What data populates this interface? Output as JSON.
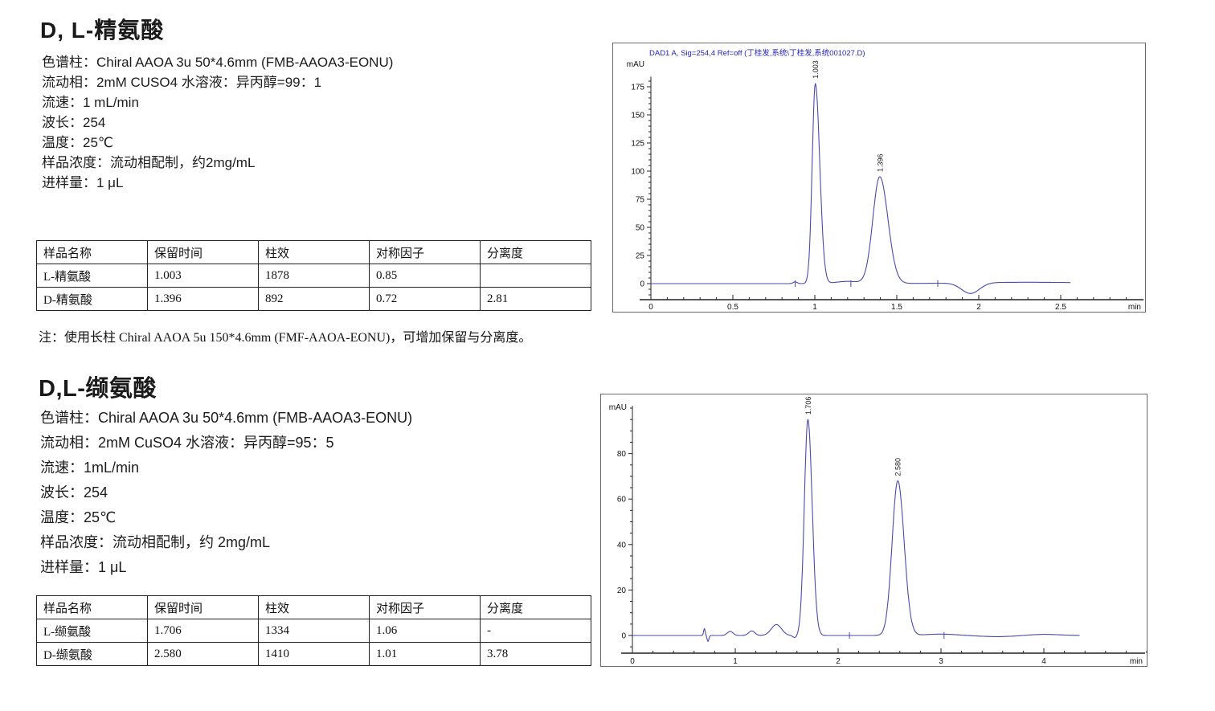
{
  "section1": {
    "title": "D, L-精氨酸",
    "specs": [
      "色谱柱：Chiral AAOA 3u 50*4.6mm (FMB-AAOA3-EONU)",
      "流动相：2mM CUSO4 水溶液：异丙醇=99：1",
      "流速：1 mL/min",
      "波长：254",
      "温度：25℃",
      "样品浓度：流动相配制，约2mg/mL",
      "进样量：1 μL"
    ],
    "table": {
      "headers": [
        "样品名称",
        "保留时间",
        "柱效",
        "对称因子",
        "分离度"
      ],
      "rows": [
        [
          "L-精氨酸",
          "1.003",
          "1878",
          "0.85",
          ""
        ],
        [
          "D-精氨酸",
          "1.396",
          "892",
          "0.72",
          "2.81"
        ]
      ]
    },
    "note": "注：使用长柱 Chiral AAOA 5u 150*4.6mm (FMF-AAOA-EONU)，可增加保留与分离度。"
  },
  "section2": {
    "title": "D,L-缬氨酸",
    "specs": [
      "色谱柱：Chiral AAOA 3u 50*4.6mm (FMB-AAOA3-EONU)",
      "流动相：2mM CuSO4 水溶液：异丙醇=95：5",
      "流速：1mL/min",
      "波长：254",
      "温度：25℃",
      "样品浓度：流动相配制，约 2mg/mL",
      "进样量：1 μL"
    ],
    "table": {
      "headers": [
        "样品名称",
        "保留时间",
        "柱效",
        "对称因子",
        "分离度"
      ],
      "rows": [
        [
          "L-缬氨酸",
          "1.706",
          "1334",
          "1.06",
          "-"
        ],
        [
          "D-缬氨酸",
          "2.580",
          "1410",
          "1.01",
          "3.78"
        ]
      ]
    }
  },
  "chart_data": [
    {
      "type": "line",
      "compound": "D,L-精氨酸",
      "title": "DAD1 A, Sig=254,4 Ref=off (丁桂发,系统\\丁桂发,系统001027.D)",
      "title_color": "#2323c4",
      "xlabel": "min",
      "ylabel": "mAU",
      "xlim": [
        0,
        3.05
      ],
      "ylim": [
        -18,
        198
      ],
      "x_major_ticks": [
        0,
        0.5,
        1,
        1.5,
        2,
        2.5
      ],
      "x_minor_step": 0.1,
      "x_tick_end": 2.9,
      "y_major_ticks": [
        0,
        25,
        50,
        75,
        100,
        125,
        150,
        175
      ],
      "y_minor_step": 5,
      "y_tick_min": -10,
      "y_axis_top": 184,
      "trace_color": "#4a4aae",
      "trace_end": 2.56,
      "peaks": [
        {
          "rt": 1.003,
          "height": 178,
          "sigma_left": 0.019,
          "sigma_right": 0.027,
          "label": "1.003"
        },
        {
          "rt": 1.396,
          "height": 95,
          "sigma_left": 0.042,
          "sigma_right": 0.05,
          "label": "1.396"
        }
      ],
      "baseline_features": [
        {
          "rt": 0.88,
          "height": 1.6,
          "sigma": 0.012
        },
        {
          "rt": 1.2,
          "height": 2.0,
          "sigma": 0.07
        },
        {
          "rt": 1.95,
          "height": -9.5,
          "sigma": 0.055
        },
        {
          "rt": 2.3,
          "height": 1.2,
          "sigma": 0.35
        }
      ],
      "integration_marks": [
        0.88,
        1.22,
        1.75
      ]
    },
    {
      "type": "line",
      "compound": "D,L-缬氨酸",
      "title": "",
      "title_color": "#2323c4",
      "xlabel": "min",
      "ylabel": "mAU",
      "xlim": [
        0,
        5.0
      ],
      "ylim": [
        -10,
        102
      ],
      "x_major_ticks": [
        0,
        1,
        2,
        3,
        4
      ],
      "x_minor_step": 0.2,
      "x_tick_end": 4.9,
      "y_major_ticks": [
        0,
        20,
        40,
        60,
        80
      ],
      "y_minor_step": 5,
      "y_tick_min": -5,
      "y_axis_top": 101,
      "trace_color": "#4a4aae",
      "trace_end": 4.35,
      "peaks": [
        {
          "rt": 1.706,
          "height": 95,
          "sigma_left": 0.035,
          "sigma_right": 0.042,
          "label": "1.706"
        },
        {
          "rt": 2.58,
          "height": 68,
          "sigma_left": 0.055,
          "sigma_right": 0.062,
          "label": "2.580"
        }
      ],
      "baseline_features": [
        {
          "rt": 0.7,
          "height": 3.0,
          "sigma": 0.008
        },
        {
          "rt": 0.735,
          "height": -2.6,
          "sigma": 0.009
        },
        {
          "rt": 0.95,
          "height": 1.8,
          "sigma": 0.028
        },
        {
          "rt": 1.16,
          "height": 2.0,
          "sigma": 0.03
        },
        {
          "rt": 1.4,
          "height": 4.8,
          "sigma": 0.05
        },
        {
          "rt": 1.58,
          "height": -1.0,
          "sigma": 0.02
        },
        {
          "rt": 3.0,
          "height": 0.6,
          "sigma": 0.15
        },
        {
          "rt": 3.55,
          "height": -0.5,
          "sigma": 0.18
        },
        {
          "rt": 4.0,
          "height": 0.5,
          "sigma": 0.15
        }
      ],
      "integration_marks": [
        2.11,
        3.03
      ]
    }
  ]
}
